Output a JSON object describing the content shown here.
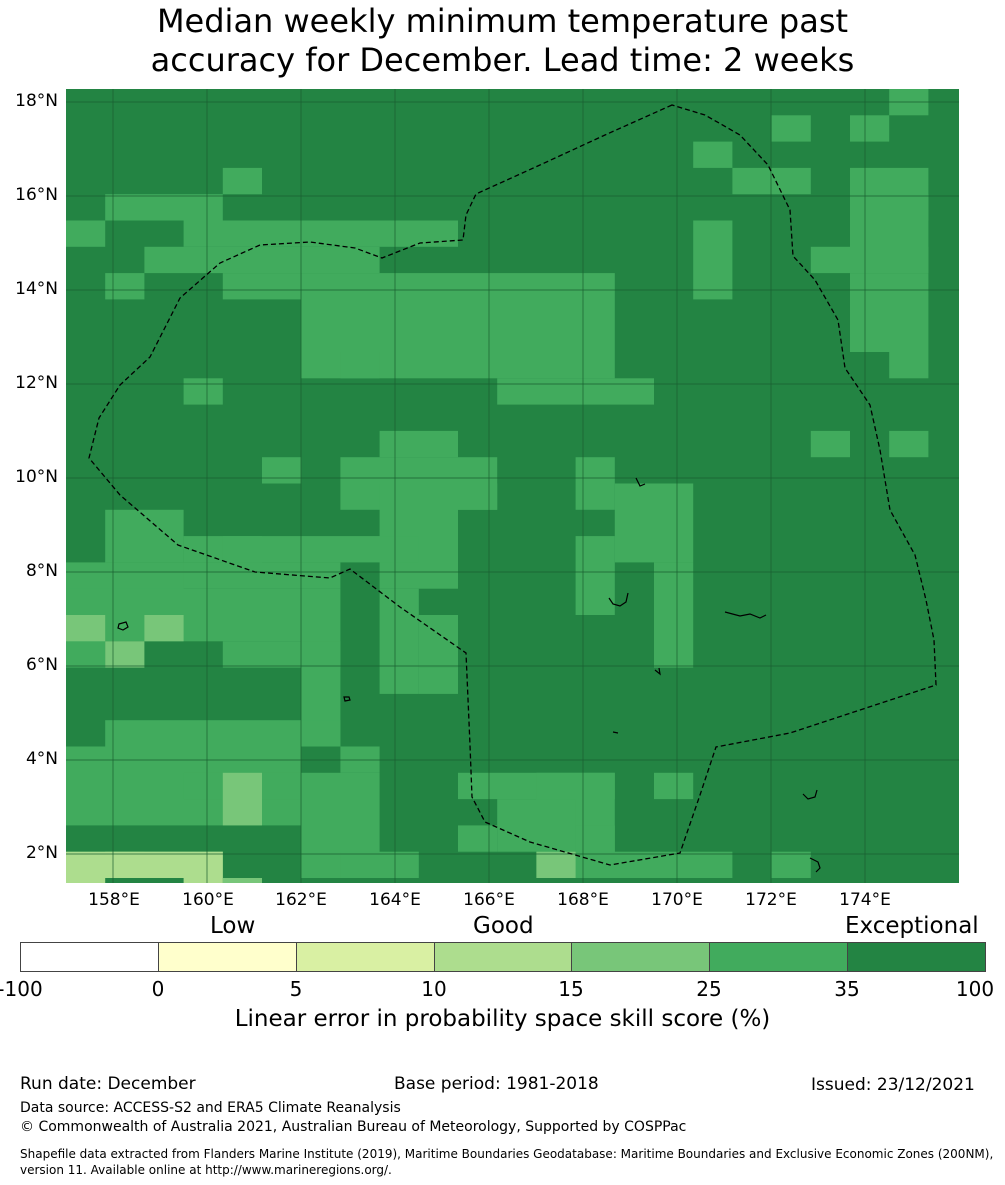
{
  "title": {
    "line1": "Median weekly minimum temperature past",
    "line2": "accuracy for December. Lead time: 2 weeks"
  },
  "map": {
    "lat_labels": [
      "18°N",
      "16°N",
      "14°N",
      "12°N",
      "10°N",
      "8°N",
      "6°N",
      "4°N",
      "2°N"
    ],
    "lon_labels": [
      "158°E",
      "160°E",
      "162°E",
      "164°E",
      "166°E",
      "168°E",
      "170°E",
      "172°E",
      "174°E"
    ],
    "dominant_class": "35-100",
    "colors": {
      "class_25_35": "#41ab5d",
      "class_35_100": "#238443",
      "class_15_25": "#78c679",
      "class_10_15": "#addd8e",
      "border": "#000000"
    }
  },
  "colorbar": {
    "categories": [
      "Low",
      "Good",
      "Exceptional"
    ],
    "ticks": [
      "-100",
      "0",
      "5",
      "10",
      "15",
      "25",
      "35",
      "100"
    ],
    "colors": [
      "#ffffff",
      "#ffffcc",
      "#d9f0a3",
      "#addd8e",
      "#78c679",
      "#41ab5d",
      "#238443"
    ],
    "label": "Linear error in probability space skill score (%)"
  },
  "footer": {
    "run_date": "Run date: December",
    "base_period": "Base period: 1981-2018",
    "issued": "Issued: 23/12/2021",
    "data_source": "Data source: ACCESS-S2 and ERA5 Climate Reanalysis",
    "copyright": "© Commonwealth of Australia 2021, Australian Bureau of Meteorology, Supported by COSPPac",
    "shapefile_line1": "Shapefile data extracted from Flanders Marine Institute (2019), Maritime Boundaries Geodatabase: Maritime Boundaries and Exclusive Economic Zones (200NM),",
    "shapefile_line2": "version 11. Available online at http://www.marineregions.org/."
  }
}
